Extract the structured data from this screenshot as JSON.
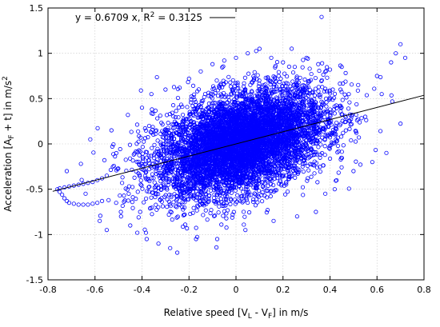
{
  "chart_data": {
    "type": "scatter",
    "title": "",
    "xlabel": "Relative speed [V_L - V_F] in m/s",
    "ylabel": "Acceleration [A_F + t] in m/s^2",
    "xlabel_parts": {
      "before": "Relative speed [V",
      "sub1": "L",
      "middle": " - V",
      "sub2": "F",
      "after": "] in m/s"
    },
    "ylabel_parts": {
      "before": "Acceleration [A",
      "sub": "F",
      "middle": " + t] in m/s",
      "sup": "2"
    },
    "xlim": [
      -0.8,
      0.8
    ],
    "ylim": [
      -1.5,
      1.5
    ],
    "xticks": [
      -0.8,
      -0.6,
      -0.4,
      -0.2,
      0,
      0.2,
      0.4,
      0.6,
      0.8
    ],
    "xtick_labels": [
      "-0.8",
      "-0.6",
      "-0.4",
      "-0.2",
      "0",
      "0.2",
      "0.4",
      "0.6",
      "0.8"
    ],
    "yticks": [
      -1.5,
      -1,
      -0.5,
      0,
      0.5,
      1,
      1.5
    ],
    "ytick_labels": [
      "-1.5",
      "-1",
      "-0.5",
      "0",
      "0.5",
      "1",
      "1.5"
    ],
    "grid": true,
    "legend": {
      "position": "top-left",
      "text_parts": {
        "before": "y = 0.6709 x, R",
        "sup": "2",
        "after": " = 0.3125"
      }
    },
    "fit": {
      "slope": 0.6709,
      "intercept": 0,
      "r2": 0.3125,
      "color": "#000000"
    },
    "point_color": "#0000ff",
    "series": [
      {
        "marker": "circle-open",
        "color": "#0000ff",
        "points": [
          [
            -0.76,
            -0.5
          ],
          [
            -0.75,
            -0.53
          ],
          [
            -0.74,
            -0.56
          ],
          [
            -0.73,
            -0.6
          ],
          [
            -0.72,
            -0.63
          ],
          [
            -0.71,
            -0.65
          ],
          [
            -0.69,
            -0.66
          ],
          [
            -0.67,
            -0.67
          ],
          [
            -0.65,
            -0.67
          ],
          [
            -0.63,
            -0.67
          ],
          [
            -0.61,
            -0.66
          ],
          [
            -0.59,
            -0.65
          ],
          [
            -0.57,
            -0.63
          ],
          [
            -0.75,
            -0.49
          ],
          [
            -0.73,
            -0.48
          ],
          [
            -0.71,
            -0.47
          ],
          [
            -0.69,
            -0.46
          ],
          [
            -0.67,
            -0.45
          ],
          [
            -0.65,
            -0.44
          ],
          [
            -0.63,
            -0.43
          ],
          [
            -0.61,
            -0.42
          ],
          [
            -0.59,
            -0.4
          ],
          [
            -0.57,
            -0.38
          ],
          [
            -0.55,
            -0.35
          ],
          [
            -0.72,
            -0.3
          ],
          [
            -0.66,
            -0.22
          ],
          [
            -0.64,
            -0.55
          ],
          [
            -0.62,
            0.05
          ],
          [
            -0.58,
            -0.85
          ],
          [
            -0.56,
            -0.18
          ],
          [
            -0.55,
            -0.95
          ],
          [
            -0.53,
            0.15
          ],
          [
            -0.51,
            -0.65
          ],
          [
            -0.49,
            -0.75
          ],
          [
            -0.46,
            0.32
          ],
          [
            -0.45,
            -0.9
          ],
          [
            -0.42,
            -0.98
          ],
          [
            -0.4,
            0.4
          ],
          [
            -0.38,
            -1.05
          ],
          [
            -0.36,
            0.55
          ],
          [
            -0.33,
            -1.1
          ],
          [
            -0.3,
            0.6
          ],
          [
            -0.28,
            -1.15
          ],
          [
            -0.25,
            -1.2
          ],
          [
            -0.24,
            0.62
          ],
          [
            -0.2,
            0.72
          ],
          [
            -0.17,
            -1.05
          ],
          [
            -0.15,
            0.8
          ],
          [
            -0.1,
            0.88
          ],
          [
            -0.08,
            -1.05
          ],
          [
            -0.05,
            0.92
          ],
          [
            0.0,
            0.95
          ],
          [
            0.04,
            -0.95
          ],
          [
            0.05,
            1.0
          ],
          [
            0.1,
            1.05
          ],
          [
            0.15,
            0.95
          ],
          [
            0.16,
            -0.85
          ],
          [
            0.2,
            0.9
          ],
          [
            0.25,
            0.85
          ],
          [
            0.26,
            -0.8
          ],
          [
            0.3,
            0.95
          ],
          [
            0.34,
            -0.75
          ],
          [
            0.35,
            0.88
          ],
          [
            0.38,
            -0.55
          ],
          [
            0.4,
            0.82
          ],
          [
            0.42,
            -0.5
          ],
          [
            0.45,
            0.85
          ],
          [
            0.48,
            0.55
          ],
          [
            0.5,
            -0.3
          ],
          [
            0.52,
            0.65
          ],
          [
            0.55,
            0.3
          ],
          [
            0.58,
            -0.2
          ],
          [
            0.6,
            0.75
          ],
          [
            0.62,
            0.55
          ],
          [
            0.64,
            -0.1
          ],
          [
            0.66,
            0.9
          ],
          [
            0.68,
            1.0
          ],
          [
            0.7,
            1.1
          ],
          [
            0.72,
            0.95
          ]
        ]
      }
    ]
  }
}
